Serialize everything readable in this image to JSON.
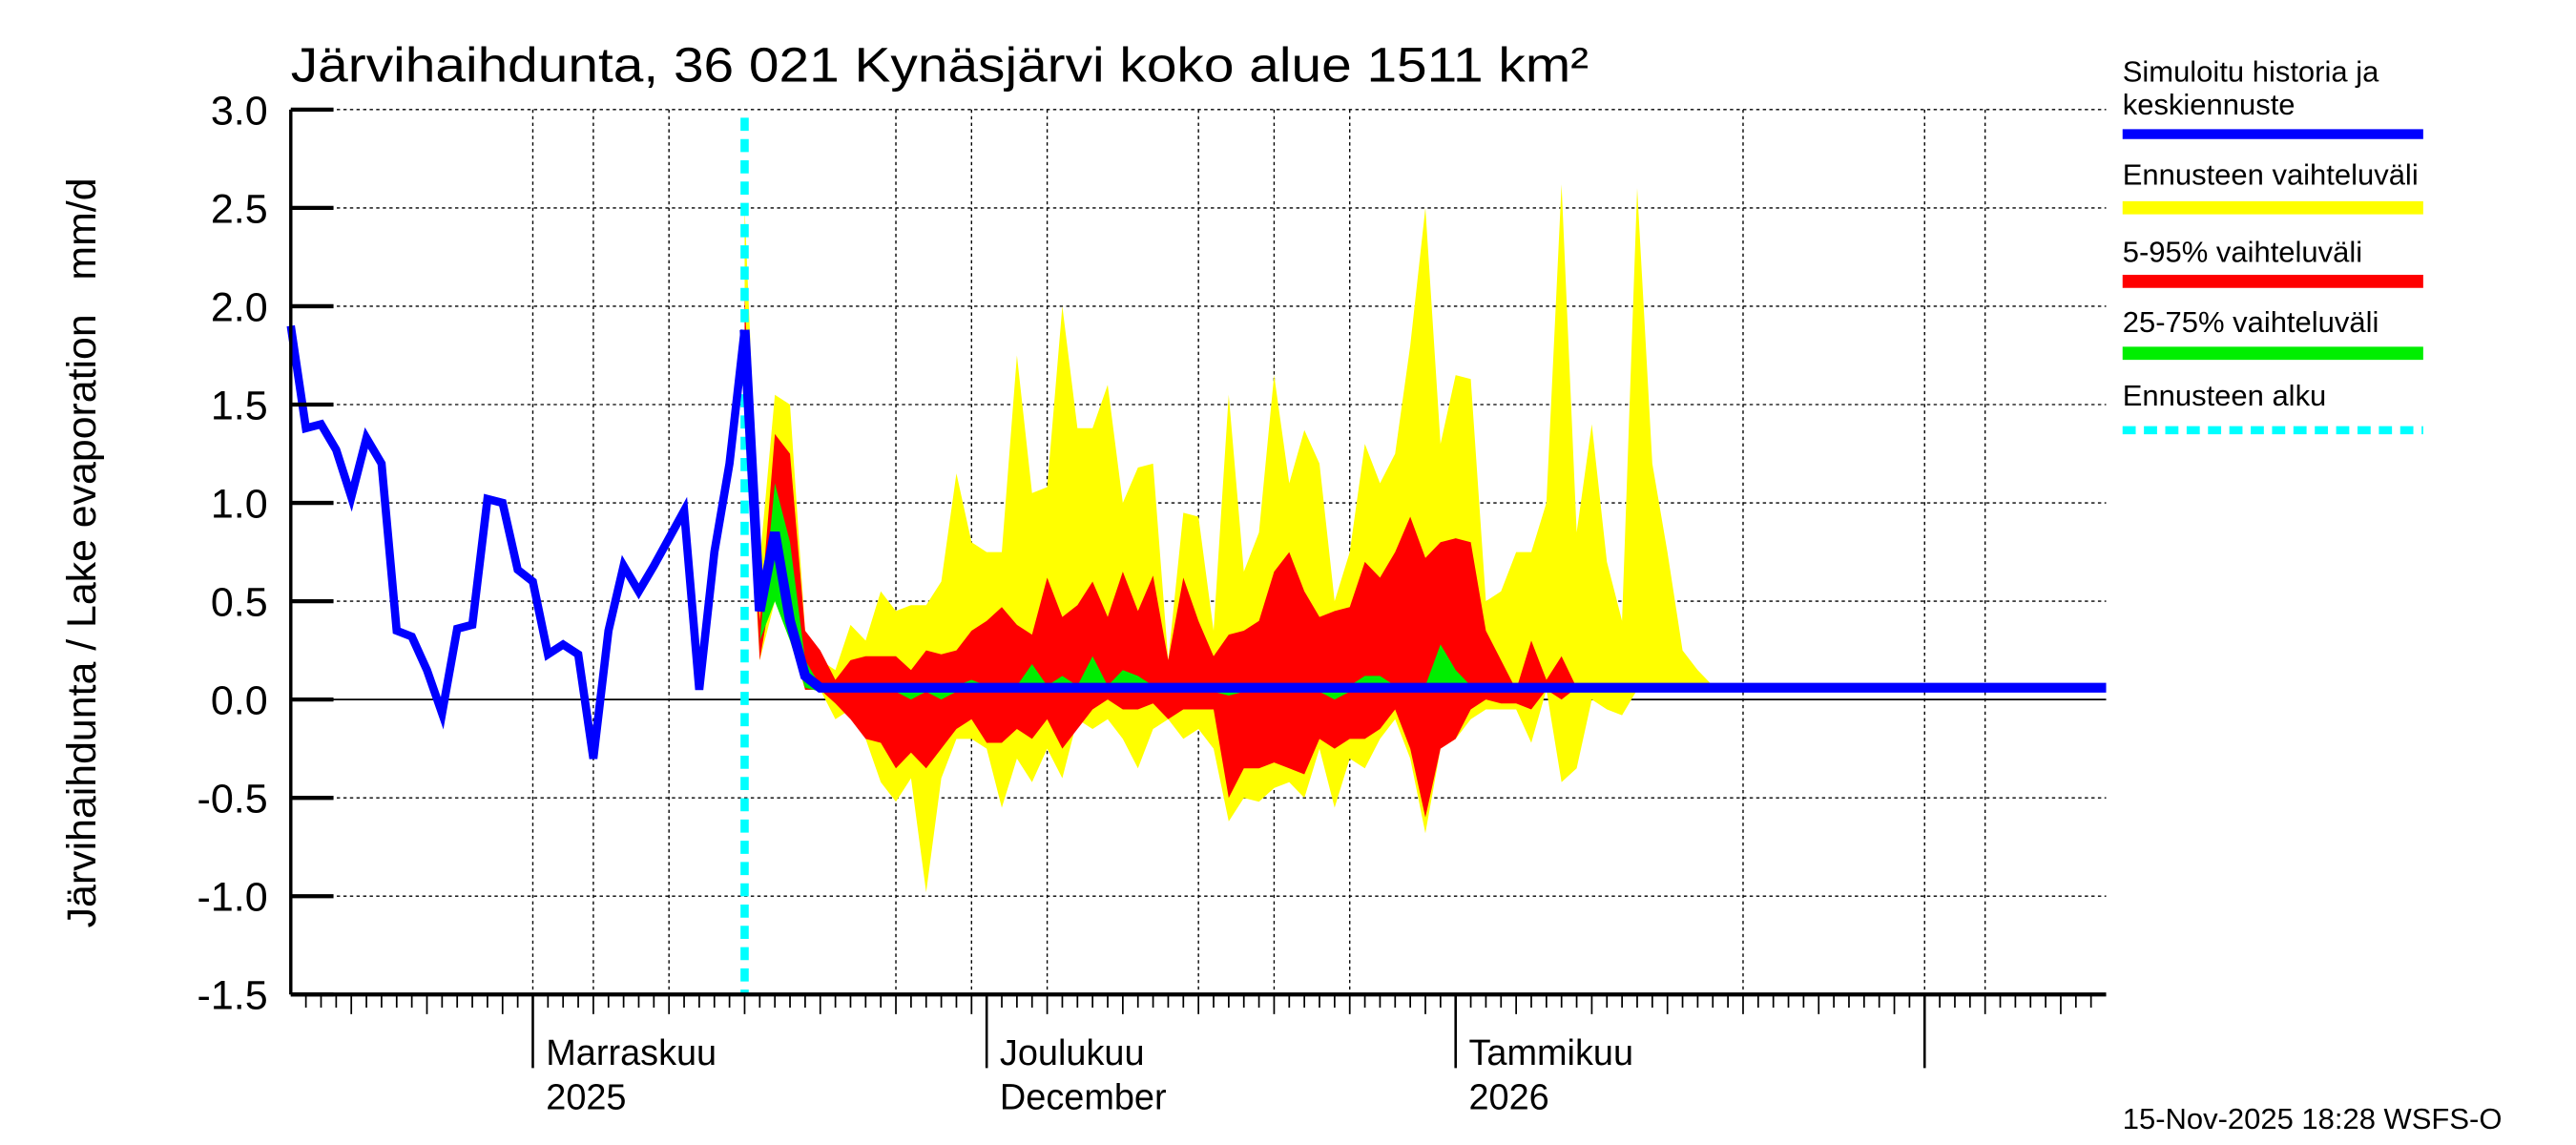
{
  "chart_data": {
    "type": "area",
    "title": "Järvihaihdunta, 36 021 Kynäsjärvi koko alue 1511 km²",
    "ylabel": "Järvihaihdunta / Lake evaporation   mm/d",
    "xlabel": "",
    "ylim": [
      -1.5,
      3.0
    ],
    "yticks": [
      "3.0",
      "2.5",
      "2.0",
      "1.5",
      "1.0",
      "0.5",
      "0.0",
      "-0.5",
      "-1.0",
      "-1.5"
    ],
    "xlim": [
      "2025-10-16",
      "2026-02-13"
    ],
    "x_month_labels": [
      {
        "date": "2025-11-01",
        "line1": "Marraskuu",
        "line2": "2025"
      },
      {
        "date": "2025-12-01",
        "line1": "Joulukuu",
        "line2": "December"
      },
      {
        "date": "2026-01-01",
        "line1": "Tammikuu",
        "line2": "2026"
      }
    ],
    "grid": true,
    "legend_position": "right",
    "forecast_start": "2025-11-15",
    "colors": {
      "history": "#0000ff",
      "range": "#ffff00",
      "p5_95": "#ff0000",
      "p25_75": "#00ee00",
      "forecast_start": "#00ffff"
    },
    "history": {
      "name": "Simuloitu historia ja keskiennuste",
      "dates": [
        "2025-10-16",
        "2025-10-17",
        "2025-10-18",
        "2025-10-19",
        "2025-10-20",
        "2025-10-21",
        "2025-10-22",
        "2025-10-23",
        "2025-10-24",
        "2025-10-25",
        "2025-10-26",
        "2025-10-27",
        "2025-10-28",
        "2025-10-29",
        "2025-10-30",
        "2025-10-31",
        "2025-11-01",
        "2025-11-02",
        "2025-11-03",
        "2025-11-04",
        "2025-11-05",
        "2025-11-06",
        "2025-11-07",
        "2025-11-08",
        "2025-11-09",
        "2025-11-10",
        "2025-11-11",
        "2025-11-12",
        "2025-11-13",
        "2025-11-14",
        "2025-11-15"
      ],
      "values": [
        1.9,
        1.38,
        1.4,
        1.27,
        1.03,
        1.33,
        1.2,
        0.35,
        0.32,
        0.15,
        -0.07,
        0.36,
        0.38,
        1.02,
        1.0,
        0.66,
        0.6,
        0.23,
        0.28,
        0.23,
        -0.3,
        0.35,
        0.68,
        0.55,
        0.68,
        0.82,
        0.96,
        0.05,
        0.75,
        1.2,
        1.88
      ]
    },
    "median_forecast": [
      [
        "2025-11-15",
        1.88
      ],
      [
        "2025-11-16",
        0.45
      ],
      [
        "2025-11-17",
        0.85
      ],
      [
        "2025-11-18",
        0.4
      ],
      [
        "2025-11-19",
        0.12
      ],
      [
        "2025-11-20",
        0.06
      ],
      [
        "2026-02-13",
        0.06
      ]
    ],
    "band_dates": [
      "2025-11-15",
      "2025-11-16",
      "2025-11-17",
      "2025-11-18",
      "2025-11-19",
      "2025-11-20",
      "2025-11-21",
      "2025-11-22",
      "2025-11-23",
      "2025-11-24",
      "2025-11-25",
      "2025-11-26",
      "2025-11-27",
      "2025-11-28",
      "2025-11-29",
      "2025-11-30",
      "2025-12-01",
      "2025-12-02",
      "2025-12-03",
      "2025-12-04",
      "2025-12-05",
      "2025-12-06",
      "2025-12-07",
      "2025-12-08",
      "2025-12-09",
      "2025-12-10",
      "2025-12-11",
      "2025-12-12",
      "2025-12-13",
      "2025-12-14",
      "2025-12-15",
      "2025-12-16",
      "2025-12-17",
      "2025-12-18",
      "2025-12-19",
      "2025-12-20",
      "2025-12-21",
      "2025-12-22",
      "2025-12-23",
      "2025-12-24",
      "2025-12-25",
      "2025-12-26",
      "2025-12-27",
      "2025-12-28",
      "2025-12-29",
      "2025-12-30",
      "2025-12-31",
      "2026-01-01",
      "2026-01-02",
      "2026-01-03",
      "2026-01-04",
      "2026-01-05",
      "2026-01-06",
      "2026-01-07",
      "2026-01-08",
      "2026-01-09",
      "2026-01-10",
      "2026-01-11",
      "2026-01-12",
      "2026-01-13",
      "2026-01-14",
      "2026-01-15",
      "2026-01-16",
      "2026-01-17",
      "2026-01-18"
    ],
    "bands": [
      {
        "name": "Ennusteen vaihteluväli",
        "color": "#ffff00",
        "upper": [
          2.5,
          0.7,
          1.55,
          1.5,
          0.35,
          0.2,
          0.15,
          0.38,
          0.3,
          0.55,
          0.45,
          0.48,
          0.48,
          0.6,
          1.15,
          0.8,
          0.75,
          0.75,
          1.75,
          1.05,
          1.08,
          2.0,
          1.38,
          1.38,
          1.6,
          1.0,
          1.18,
          1.2,
          0.2,
          0.95,
          0.93,
          0.35,
          1.55,
          0.65,
          0.85,
          1.65,
          1.1,
          1.37,
          1.2,
          0.5,
          0.75,
          1.3,
          1.1,
          1.25,
          1.8,
          2.5,
          1.3,
          1.65,
          1.63,
          0.5,
          0.55,
          0.75,
          0.75,
          1.0,
          2.62,
          0.85,
          1.4,
          0.7,
          0.4,
          2.6,
          1.2,
          0.75,
          0.25,
          0.15,
          0.07
        ],
        "lower": [
          1.5,
          0.2,
          0.5,
          0.3,
          0.05,
          0.05,
          -0.1,
          -0.05,
          -0.2,
          -0.42,
          -0.52,
          -0.4,
          -0.98,
          -0.4,
          -0.2,
          -0.2,
          -0.25,
          -0.55,
          -0.3,
          -0.42,
          -0.25,
          -0.4,
          -0.1,
          -0.15,
          -0.1,
          -0.2,
          -0.35,
          -0.15,
          -0.1,
          -0.2,
          -0.15,
          -0.25,
          -0.62,
          -0.5,
          -0.52,
          -0.45,
          -0.42,
          -0.5,
          -0.25,
          -0.55,
          -0.3,
          -0.35,
          -0.2,
          -0.1,
          -0.3,
          -0.68,
          -0.25,
          -0.2,
          -0.1,
          -0.05,
          -0.05,
          -0.05,
          -0.22,
          0.05,
          -0.42,
          -0.35,
          0.0,
          -0.05,
          -0.08,
          0.05,
          0.06,
          0.06,
          0.06,
          0.06,
          0.06
        ]
      },
      {
        "name": "5-95% vaihteluväli",
        "color": "#ff0000",
        "upper": [
          2.05,
          0.4,
          1.35,
          1.25,
          0.35,
          0.25,
          0.1,
          0.2,
          0.22,
          0.22,
          0.22,
          0.15,
          0.25,
          0.23,
          0.25,
          0.35,
          0.4,
          0.47,
          0.38,
          0.33,
          0.62,
          0.42,
          0.48,
          0.6,
          0.42,
          0.65,
          0.45,
          0.63,
          0.2,
          0.62,
          0.4,
          0.22,
          0.33,
          0.35,
          0.4,
          0.65,
          0.75,
          0.55,
          0.42,
          0.45,
          0.47,
          0.7,
          0.62,
          0.75,
          0.93,
          0.72,
          0.8,
          0.82,
          0.8,
          0.35,
          0.2,
          0.05,
          0.3,
          0.1,
          0.22,
          0.06,
          0.06,
          0.06,
          0.06,
          0.08,
          0.06,
          0.06,
          0.06,
          0.06,
          0.06
        ],
        "lower": [
          1.7,
          0.2,
          0.65,
          0.35,
          0.05,
          0.05,
          -0.02,
          -0.1,
          -0.2,
          -0.22,
          -0.35,
          -0.27,
          -0.35,
          -0.25,
          -0.15,
          -0.1,
          -0.22,
          -0.22,
          -0.15,
          -0.2,
          -0.1,
          -0.25,
          -0.15,
          -0.05,
          0.0,
          -0.05,
          -0.05,
          -0.02,
          -0.1,
          -0.05,
          -0.05,
          -0.05,
          -0.5,
          -0.35,
          -0.35,
          -0.32,
          -0.35,
          -0.38,
          -0.2,
          -0.25,
          -0.2,
          -0.2,
          -0.15,
          -0.05,
          -0.25,
          -0.6,
          -0.25,
          -0.2,
          -0.05,
          0.0,
          -0.02,
          -0.02,
          -0.05,
          0.05,
          0.0,
          0.06,
          0.06,
          0.06,
          0.06,
          0.06,
          0.06,
          0.06,
          0.06,
          0.06,
          0.06
        ]
      },
      {
        "name": "25-75% vaihteluväli",
        "color": "#00ee00",
        "upper": [
          1.9,
          0.3,
          1.1,
          0.8,
          0.2,
          0.07,
          0.07,
          0.07,
          0.07,
          0.07,
          0.07,
          0.07,
          0.07,
          0.07,
          0.07,
          0.1,
          0.07,
          0.07,
          0.07,
          0.18,
          0.07,
          0.12,
          0.07,
          0.22,
          0.07,
          0.15,
          0.12,
          0.07,
          0.07,
          0.07,
          0.07,
          0.07,
          0.08,
          0.07,
          0.07,
          0.07,
          0.07,
          0.07,
          0.07,
          0.07,
          0.07,
          0.12,
          0.12,
          0.07,
          0.07,
          0.07,
          0.28,
          0.15,
          0.07,
          0.07,
          0.07,
          0.07,
          0.07,
          0.07,
          0.07,
          0.07,
          0.07,
          0.07,
          0.07,
          0.07,
          0.07,
          0.07,
          0.07,
          0.07,
          0.07
        ],
        "lower": [
          1.85,
          0.3,
          0.5,
          0.3,
          0.06,
          0.04,
          0.04,
          0.04,
          0.04,
          0.04,
          0.04,
          0.0,
          0.04,
          0.0,
          0.04,
          0.04,
          0.04,
          0.04,
          0.04,
          0.04,
          0.04,
          0.04,
          0.04,
          0.04,
          0.04,
          0.04,
          0.04,
          0.04,
          0.04,
          0.04,
          0.04,
          0.04,
          0.02,
          0.04,
          0.04,
          0.04,
          0.04,
          0.04,
          0.04,
          0.0,
          0.04,
          0.04,
          0.04,
          0.04,
          0.04,
          0.04,
          0.04,
          0.04,
          0.04,
          0.04,
          0.04,
          0.04,
          0.04,
          0.04,
          0.04,
          0.04,
          0.04,
          0.04,
          0.04,
          0.04,
          0.04,
          0.04,
          0.04,
          0.04,
          0.04
        ]
      }
    ]
  },
  "legend": {
    "history_line1": "Simuloitu historia ja",
    "history_line2": "keskiennuste",
    "range": "Ennusteen vaihteluväli",
    "p5_95": "5-95% vaihteluväli",
    "p25_75": "25-75% vaihteluväli",
    "forecast_start": "Ennusteen alku"
  },
  "footer": "15-Nov-2025 18:28 WSFS-O"
}
